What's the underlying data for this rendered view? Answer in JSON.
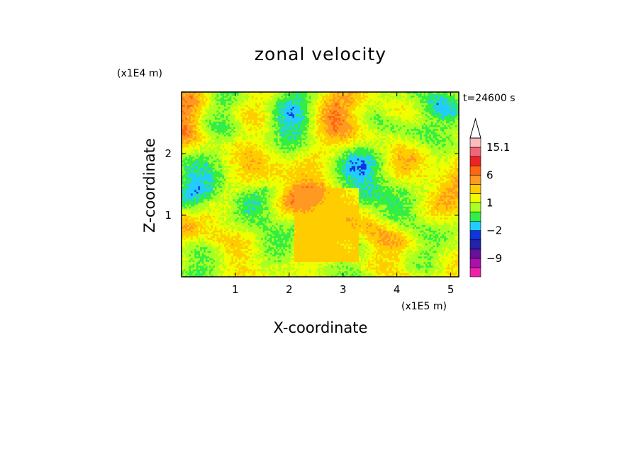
{
  "chart_data": {
    "type": "heatmap",
    "title": "zonal velocity",
    "xlabel": "X-coordinate",
    "ylabel": "Z-coordinate",
    "x_unit": "(x1E5 m)",
    "y_unit": "(x1E4 m)",
    "time_label": "t=24600 s",
    "xlim": [
      0,
      5.15
    ],
    "ylim": [
      0,
      3.0
    ],
    "x_ticks": [
      "1",
      "2",
      "3",
      "4",
      "5"
    ],
    "y_ticks": [
      "1",
      "2"
    ],
    "colorbar": {
      "levels": [
        {
          "color": "#ee22aa"
        },
        {
          "color": "#aa11aa"
        },
        {
          "color": "#661199"
        },
        {
          "color": "#2222aa"
        },
        {
          "color": "#1133dd"
        },
        {
          "color": "#22ccff"
        },
        {
          "color": "#33ee44"
        },
        {
          "color": "#aaff22"
        },
        {
          "color": "#eeff00"
        },
        {
          "color": "#ffcc00"
        },
        {
          "color": "#ff9922"
        },
        {
          "color": "#ff6611"
        },
        {
          "color": "#ee2222"
        },
        {
          "color": "#ee6677"
        },
        {
          "color": "#ffbbbb"
        },
        {
          "color": "#ffffff"
        }
      ],
      "tick_labels": [
        "-9",
        "-2",
        "1",
        "6",
        "15.1"
      ]
    }
  }
}
